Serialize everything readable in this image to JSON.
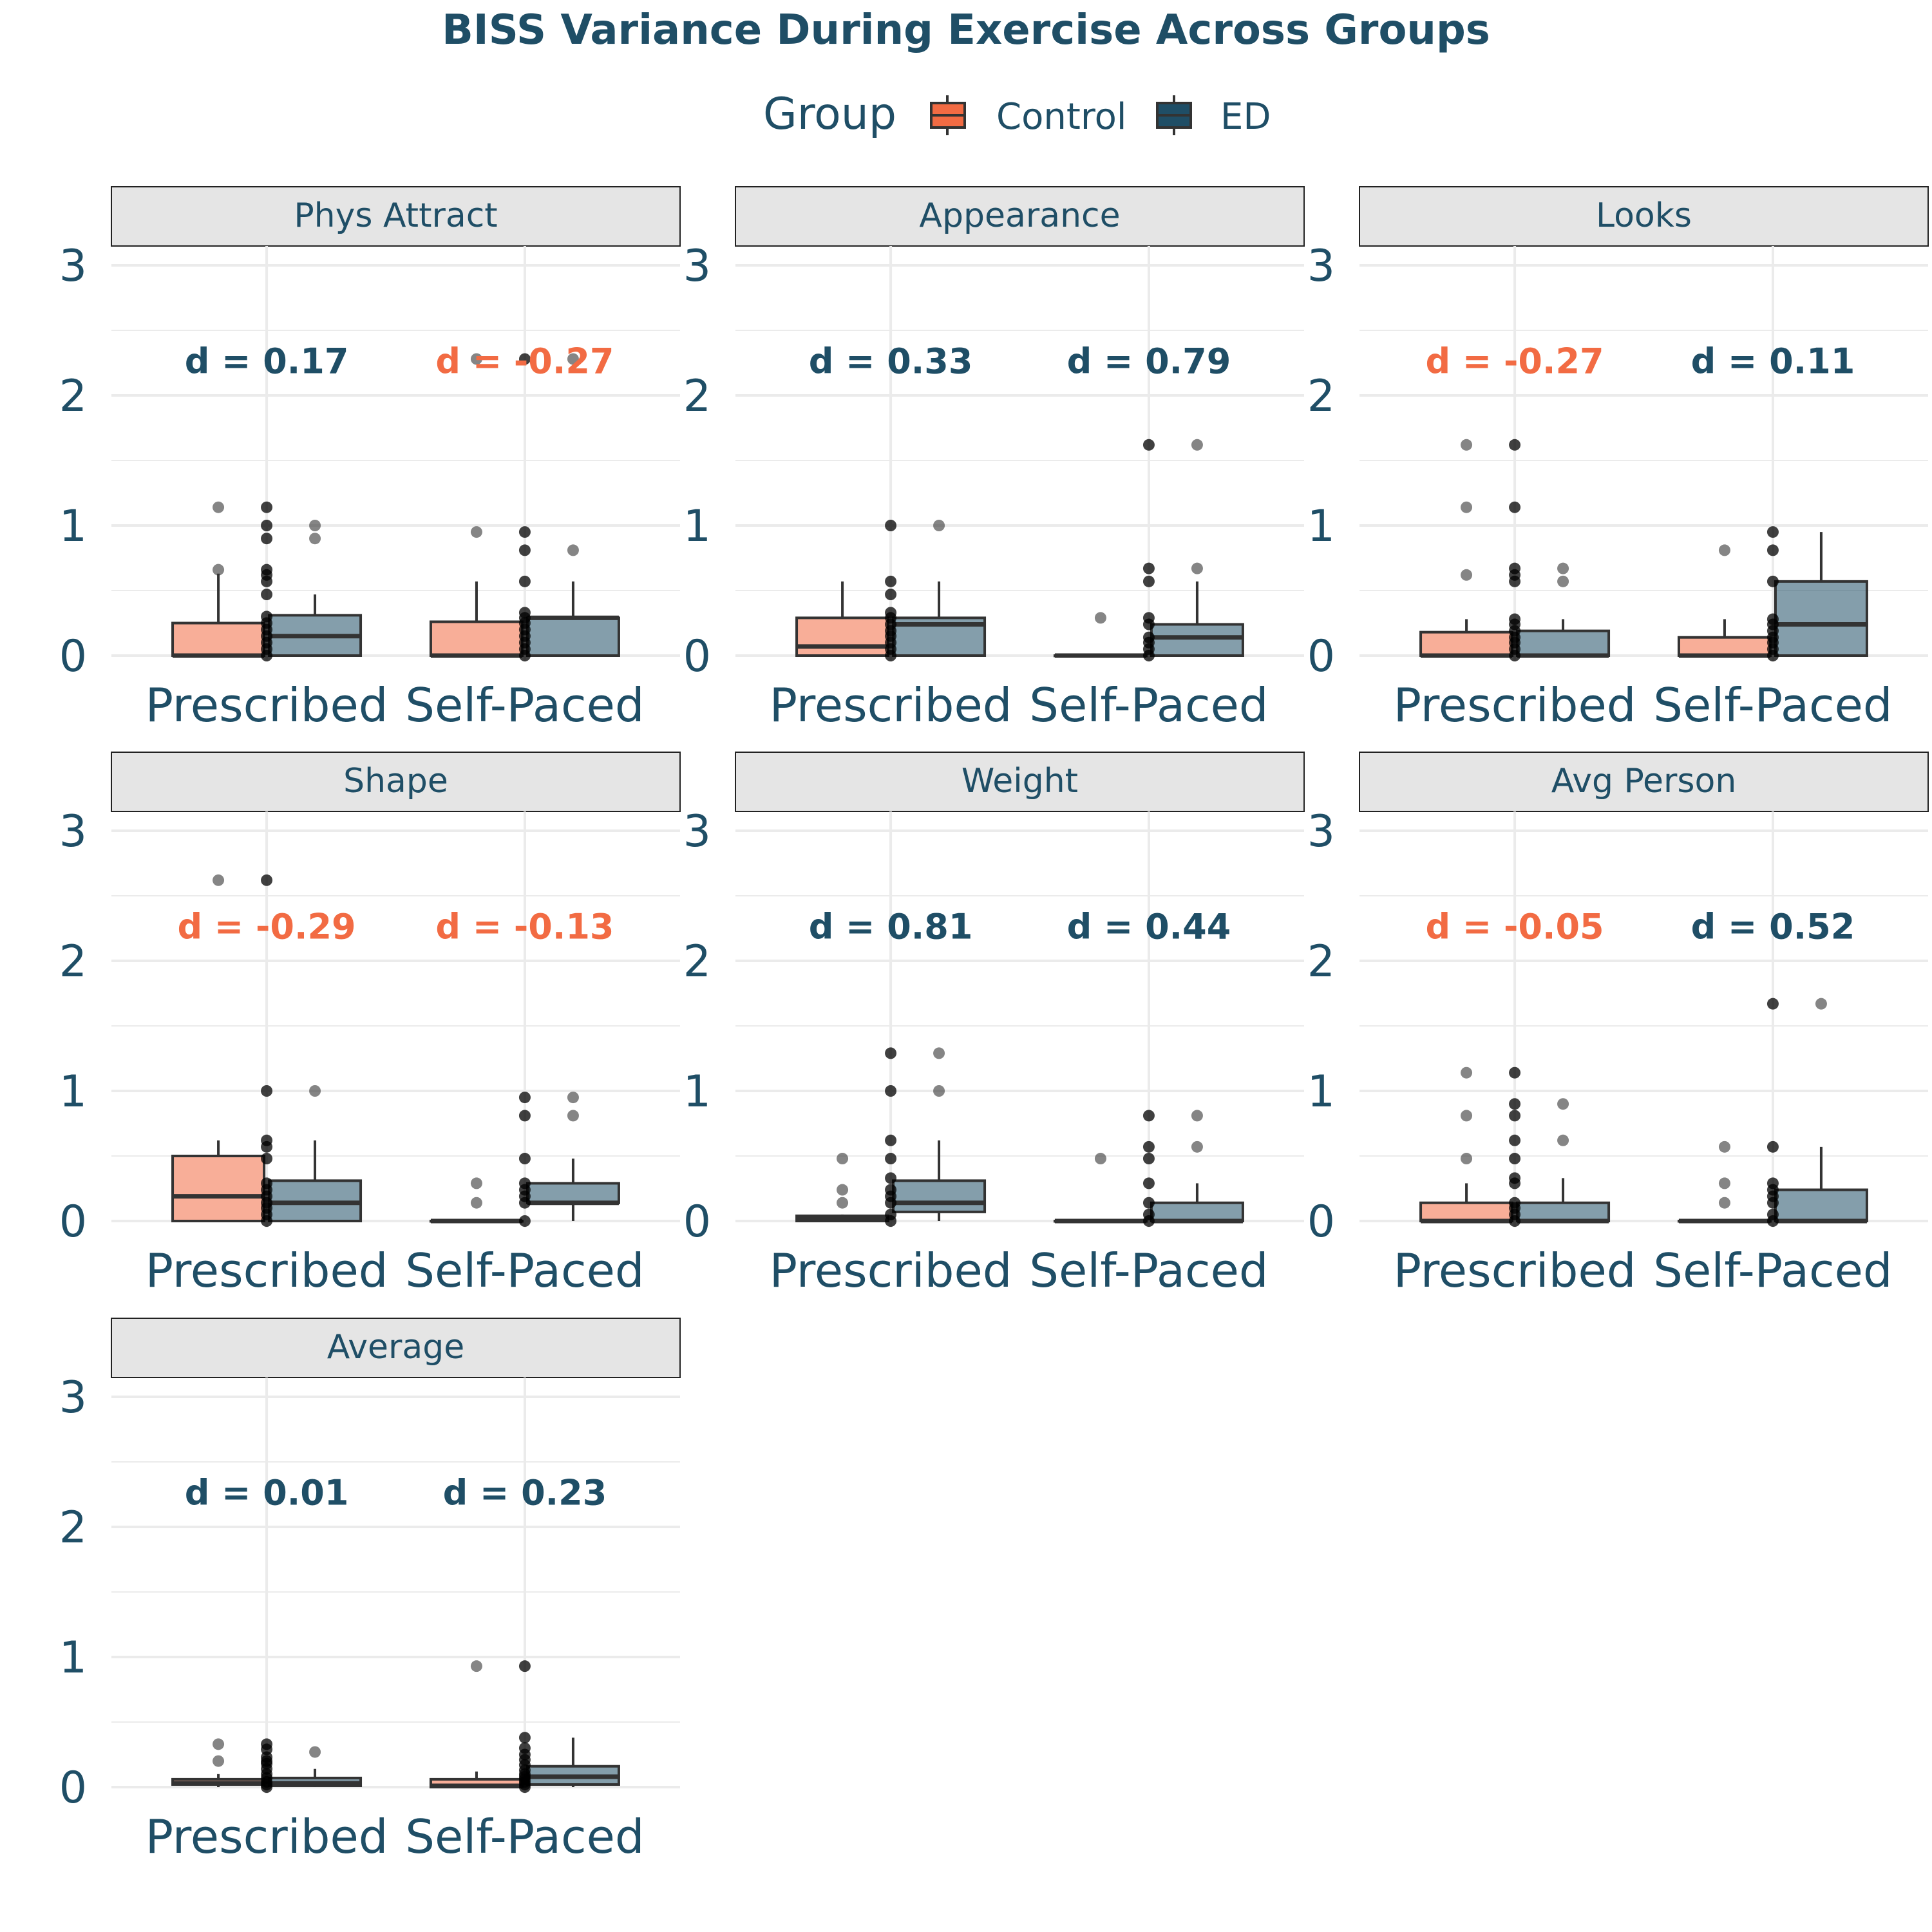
{
  "chart_data": {
    "type": "boxplot",
    "title": "BISS Variance During Exercise Across Groups",
    "legend": {
      "title": "Group",
      "position": "top",
      "entries": [
        {
          "name": "Control",
          "color": "#F26B43"
        },
        {
          "name": "ED",
          "color": "#1F4E66"
        }
      ]
    },
    "colors": {
      "text": "#1F4E66",
      "control_fill": "#F26B43",
      "ed_fill": "#1F4E66",
      "positive_d": "#1F4E66",
      "negative_d": "#F26B43",
      "strip_bg": "#E5E5E5",
      "grid": "#EBEBEB"
    },
    "ylim": [
      0,
      3
    ],
    "yticks": [
      "0",
      "1",
      "2",
      "3"
    ],
    "categories": [
      "Prescribed",
      "Self-Paced"
    ],
    "grid": true,
    "panels": [
      {
        "label": "Phys Attract",
        "effects": [
          {
            "label": "d = 0.17",
            "value": 0.17
          },
          {
            "label": "d = -0.27",
            "value": -0.27
          }
        ],
        "boxes": [
          {
            "condition": "Prescribed",
            "group": "Control",
            "q1": 0,
            "median": 0,
            "q3": 0.25,
            "whisker_low": 0,
            "whisker_high": 0.63,
            "outliers": [
              0.66,
              1.14
            ]
          },
          {
            "condition": "Prescribed",
            "group": "ED",
            "q1": 0,
            "median": 0.15,
            "q3": 0.31,
            "whisker_low": 0,
            "whisker_high": 0.47,
            "outliers": [
              0.9,
              1.0
            ]
          },
          {
            "condition": "Self-Paced",
            "group": "Control",
            "q1": 0,
            "median": 0,
            "q3": 0.26,
            "whisker_low": 0,
            "whisker_high": 0.57,
            "outliers": [
              0.95,
              2.28
            ]
          },
          {
            "condition": "Self-Paced",
            "group": "ED",
            "q1": 0,
            "median": 0.29,
            "q3": 0.29,
            "whisker_low": 0,
            "whisker_high": 0.57,
            "outliers": [
              0.81,
              2.28
            ]
          }
        ],
        "points": [
          {
            "condition": "Prescribed",
            "values": [
              0,
              0.05,
              0.1,
              0.15,
              0.2,
              0.25,
              0.3,
              0.47,
              0.57,
              0.62,
              0.66,
              0.9,
              1.0,
              1.14
            ]
          },
          {
            "condition": "Self-Paced",
            "values": [
              0,
              0.05,
              0.1,
              0.15,
              0.2,
              0.25,
              0.29,
              0.33,
              0.57,
              0.81,
              0.95,
              2.28
            ]
          }
        ]
      },
      {
        "label": "Appearance",
        "effects": [
          {
            "label": "d = 0.33",
            "value": 0.33
          },
          {
            "label": "d = 0.79",
            "value": 0.79
          }
        ],
        "boxes": [
          {
            "condition": "Prescribed",
            "group": "Control",
            "q1": 0,
            "median": 0.07,
            "q3": 0.29,
            "whisker_low": 0,
            "whisker_high": 0.57,
            "outliers": []
          },
          {
            "condition": "Prescribed",
            "group": "ED",
            "q1": 0,
            "median": 0.24,
            "q3": 0.29,
            "whisker_low": 0,
            "whisker_high": 0.57,
            "outliers": [
              1.0
            ]
          },
          {
            "condition": "Self-Paced",
            "group": "Control",
            "q1": 0,
            "median": 0,
            "q3": 0,
            "whisker_low": 0,
            "whisker_high": 0,
            "outliers": [
              0.29
            ]
          },
          {
            "condition": "Self-Paced",
            "group": "ED",
            "q1": 0,
            "median": 0.14,
            "q3": 0.24,
            "whisker_low": 0,
            "whisker_high": 0.57,
            "outliers": [
              0.67,
              1.62
            ]
          }
        ],
        "points": [
          {
            "condition": "Prescribed",
            "values": [
              0,
              0.05,
              0.1,
              0.15,
              0.19,
              0.24,
              0.29,
              0.33,
              0.47,
              0.57,
              1.0
            ]
          },
          {
            "condition": "Self-Paced",
            "values": [
              0,
              0.05,
              0.1,
              0.14,
              0.24,
              0.29,
              0.57,
              0.67,
              1.62
            ]
          }
        ]
      },
      {
        "label": "Looks",
        "effects": [
          {
            "label": "d = -0.27",
            "value": -0.27
          },
          {
            "label": "d = 0.11",
            "value": 0.11
          }
        ],
        "boxes": [
          {
            "condition": "Prescribed",
            "group": "Control",
            "q1": 0,
            "median": 0,
            "q3": 0.18,
            "whisker_low": 0,
            "whisker_high": 0.28,
            "outliers": [
              0.62,
              1.14,
              1.62
            ]
          },
          {
            "condition": "Prescribed",
            "group": "ED",
            "q1": 0,
            "median": 0,
            "q3": 0.19,
            "whisker_low": 0,
            "whisker_high": 0.28,
            "outliers": [
              0.57,
              0.67
            ]
          },
          {
            "condition": "Self-Paced",
            "group": "Control",
            "q1": 0,
            "median": 0,
            "q3": 0.14,
            "whisker_low": 0,
            "whisker_high": 0.28,
            "outliers": [
              0.81
            ]
          },
          {
            "condition": "Self-Paced",
            "group": "ED",
            "q1": 0,
            "median": 0.24,
            "q3": 0.57,
            "whisker_low": 0,
            "whisker_high": 0.95,
            "outliers": []
          }
        ],
        "points": [
          {
            "condition": "Prescribed",
            "values": [
              0,
              0.05,
              0.1,
              0.14,
              0.19,
              0.24,
              0.28,
              0.57,
              0.62,
              0.67,
              1.14,
              1.62
            ]
          },
          {
            "condition": "Self-Paced",
            "values": [
              0,
              0.05,
              0.1,
              0.14,
              0.19,
              0.24,
              0.28,
              0.57,
              0.81,
              0.95
            ]
          }
        ]
      },
      {
        "label": "Shape",
        "effects": [
          {
            "label": "d = -0.29",
            "value": -0.29
          },
          {
            "label": "d = -0.13",
            "value": -0.13
          }
        ],
        "boxes": [
          {
            "condition": "Prescribed",
            "group": "Control",
            "q1": 0,
            "median": 0.19,
            "q3": 0.5,
            "whisker_low": 0,
            "whisker_high": 0.62,
            "outliers": [
              2.62
            ]
          },
          {
            "condition": "Prescribed",
            "group": "ED",
            "q1": 0,
            "median": 0.14,
            "q3": 0.31,
            "whisker_low": 0,
            "whisker_high": 0.62,
            "outliers": [
              1.0
            ]
          },
          {
            "condition": "Self-Paced",
            "group": "Control",
            "q1": 0,
            "median": 0,
            "q3": 0,
            "whisker_low": 0,
            "whisker_high": 0,
            "outliers": [
              0.14,
              0.29
            ]
          },
          {
            "condition": "Self-Paced",
            "group": "ED",
            "q1": 0.14,
            "median": 0.14,
            "q3": 0.29,
            "whisker_low": 0,
            "whisker_high": 0.48,
            "outliers": [
              0.81,
              0.95
            ]
          }
        ],
        "points": [
          {
            "condition": "Prescribed",
            "values": [
              0,
              0.05,
              0.1,
              0.14,
              0.19,
              0.24,
              0.29,
              0.48,
              0.57,
              0.62,
              1.0,
              2.62
            ]
          },
          {
            "condition": "Self-Paced",
            "values": [
              0,
              0.14,
              0.19,
              0.24,
              0.29,
              0.48,
              0.81,
              0.95
            ]
          }
        ]
      },
      {
        "label": "Weight",
        "effects": [
          {
            "label": "d = 0.81",
            "value": 0.81
          },
          {
            "label": "d = 0.44",
            "value": 0.44
          }
        ],
        "boxes": [
          {
            "condition": "Prescribed",
            "group": "Control",
            "q1": 0,
            "median": 0.02,
            "q3": 0.04,
            "whisker_low": 0,
            "whisker_high": 0.05,
            "outliers": [
              0.14,
              0.24,
              0.48
            ]
          },
          {
            "condition": "Prescribed",
            "group": "ED",
            "q1": 0.07,
            "median": 0.14,
            "q3": 0.31,
            "whisker_low": 0,
            "whisker_high": 0.62,
            "outliers": [
              1.0,
              1.29
            ]
          },
          {
            "condition": "Self-Paced",
            "group": "Control",
            "q1": 0,
            "median": 0,
            "q3": 0,
            "whisker_low": 0,
            "whisker_high": 0,
            "outliers": [
              0.48
            ]
          },
          {
            "condition": "Self-Paced",
            "group": "ED",
            "q1": 0,
            "median": 0,
            "q3": 0.14,
            "whisker_low": 0,
            "whisker_high": 0.29,
            "outliers": [
              0.57,
              0.81
            ]
          }
        ],
        "points": [
          {
            "condition": "Prescribed",
            "values": [
              0,
              0.05,
              0.14,
              0.19,
              0.24,
              0.33,
              0.48,
              0.62,
              1.0,
              1.29
            ]
          },
          {
            "condition": "Self-Paced",
            "values": [
              0,
              0.05,
              0.14,
              0.29,
              0.48,
              0.57,
              0.81
            ]
          }
        ]
      },
      {
        "label": "Avg Person",
        "effects": [
          {
            "label": "d = -0.05",
            "value": -0.05
          },
          {
            "label": "d = 0.52",
            "value": 0.52
          }
        ],
        "boxes": [
          {
            "condition": "Prescribed",
            "group": "Control",
            "q1": 0,
            "median": 0,
            "q3": 0.14,
            "whisker_low": 0,
            "whisker_high": 0.29,
            "outliers": [
              0.48,
              0.81,
              1.14
            ]
          },
          {
            "condition": "Prescribed",
            "group": "ED",
            "q1": 0,
            "median": 0,
            "q3": 0.14,
            "whisker_low": 0,
            "whisker_high": 0.33,
            "outliers": [
              0.62,
              0.9
            ]
          },
          {
            "condition": "Self-Paced",
            "group": "Control",
            "q1": 0,
            "median": 0,
            "q3": 0,
            "whisker_low": 0,
            "whisker_high": 0,
            "outliers": [
              0.14,
              0.29,
              0.57
            ]
          },
          {
            "condition": "Self-Paced",
            "group": "ED",
            "q1": 0,
            "median": 0,
            "q3": 0.24,
            "whisker_low": 0,
            "whisker_high": 0.57,
            "outliers": [
              1.67
            ]
          }
        ],
        "points": [
          {
            "condition": "Prescribed",
            "values": [
              0,
              0.05,
              0.1,
              0.14,
              0.29,
              0.33,
              0.48,
              0.62,
              0.81,
              0.9,
              1.14
            ]
          },
          {
            "condition": "Self-Paced",
            "values": [
              0,
              0.05,
              0.14,
              0.19,
              0.24,
              0.29,
              0.57,
              1.67
            ]
          }
        ]
      },
      {
        "label": "Average",
        "effects": [
          {
            "label": "d = 0.01",
            "value": 0.01
          },
          {
            "label": "d = 0.23",
            "value": 0.23
          }
        ],
        "boxes": [
          {
            "condition": "Prescribed",
            "group": "Control",
            "q1": 0.02,
            "median": 0.03,
            "q3": 0.06,
            "whisker_low": 0,
            "whisker_high": 0.1,
            "outliers": [
              0.2,
              0.33
            ]
          },
          {
            "condition": "Prescribed",
            "group": "ED",
            "q1": 0.01,
            "median": 0.03,
            "q3": 0.07,
            "whisker_low": 0,
            "whisker_high": 0.14,
            "outliers": [
              0.27
            ]
          },
          {
            "condition": "Self-Paced",
            "group": "Control",
            "q1": 0,
            "median": 0.01,
            "q3": 0.06,
            "whisker_low": 0,
            "whisker_high": 0.12,
            "outliers": [
              0.93
            ]
          },
          {
            "condition": "Self-Paced",
            "group": "ED",
            "q1": 0.02,
            "median": 0.08,
            "q3": 0.16,
            "whisker_low": 0,
            "whisker_high": 0.38,
            "outliers": []
          }
        ],
        "points": [
          {
            "condition": "Prescribed",
            "values": [
              0,
              0.02,
              0.04,
              0.07,
              0.1,
              0.14,
              0.18,
              0.2,
              0.23,
              0.29,
              0.33
            ]
          },
          {
            "condition": "Self-Paced",
            "values": [
              0,
              0.02,
              0.04,
              0.06,
              0.08,
              0.1,
              0.13,
              0.17,
              0.21,
              0.25,
              0.3,
              0.38,
              0.93
            ]
          }
        ]
      }
    ]
  }
}
